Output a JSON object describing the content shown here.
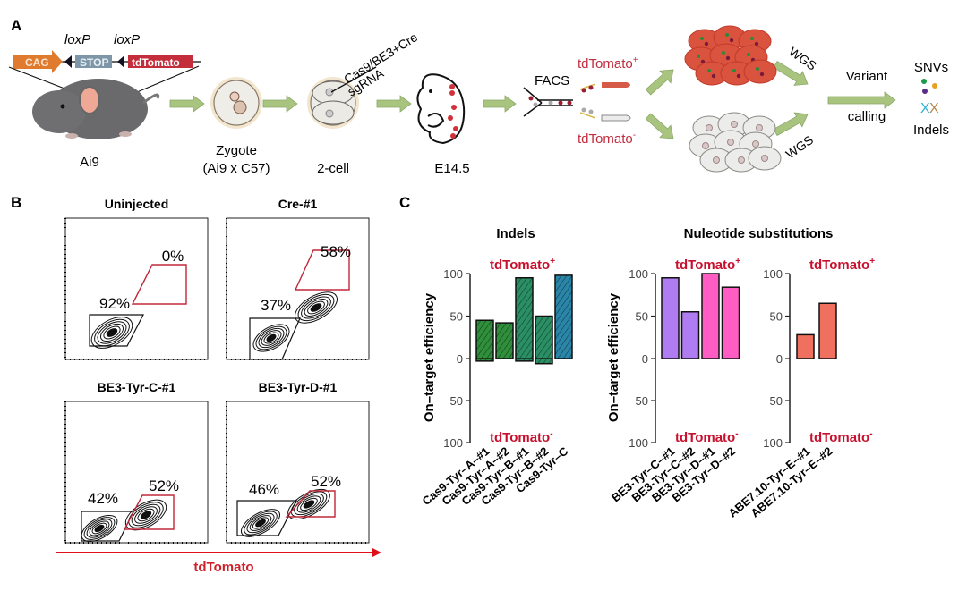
{
  "panel_a": {
    "letter": "A",
    "loxp1": "loxP",
    "loxp2": "loxP",
    "construct": {
      "cag": "CAG",
      "stop": "STOP",
      "tdtomato": "tdTomato"
    },
    "mouse_label": "Ai9",
    "zygote_label": "Zygote",
    "zygote_sub": "(Ai9 x C57)",
    "twocell_label": "2-cell",
    "injection_1": "Cas9/BE3+Cre",
    "injection_2": "sgRNA",
    "embryo_label": "E14.5",
    "facs": "FACS",
    "tdtomato_pos": "tdTomato",
    "tdtomato_neg": "tdTomato",
    "pos_sup": "+",
    "neg_sup": "-",
    "wgs_top": "WGS",
    "wgs_bottom": "WGS",
    "variant": "Variant",
    "calling": "calling",
    "snvs": "SNVs",
    "indels": "Indels",
    "colors": {
      "arrow": "#a9c47f",
      "red": "#d0323a",
      "cag": "#e07a2e",
      "stop": "#7d97a8"
    }
  },
  "panel_b": {
    "letter": "B",
    "plots": [
      {
        "title": "Uninjected",
        "neg_pct": "92%",
        "pos_pct": "0%"
      },
      {
        "title": "Cre-#1",
        "neg_pct": "37%",
        "pos_pct": "58%"
      },
      {
        "title": "BE3-Tyr-C-#1",
        "neg_pct": "42%",
        "pos_pct": "52%"
      },
      {
        "title": "BE3-Tyr-D-#1",
        "neg_pct": "46%",
        "pos_pct": "52%"
      }
    ],
    "x_axis_label": "tdTomato"
  },
  "panel_c": {
    "letter": "C",
    "indels_title": "Indels",
    "subs_title": "Nuleotide substitutions",
    "ylabel": "On–target efficiency",
    "pos_label": "tdTomato",
    "neg_label": "tdTomato",
    "pos_sup": "+",
    "neg_sup": "-"
  },
  "chart_data": [
    {
      "type": "bar",
      "title": "Indels",
      "ylabel": "On–target efficiency",
      "ylim": [
        -100,
        100
      ],
      "yticks": [
        "100",
        "50",
        "0",
        "50",
        "100"
      ],
      "categories": [
        "Cas9-Tyr–A–#1",
        "Cas9-Tyr–A–#2",
        "Cas9-Tyr–B–#1",
        "Cas9-Tyr–B–#2",
        "Cas9-Tyr–C"
      ],
      "series": [
        {
          "name": "tdTomato+",
          "values": [
            45,
            42,
            95,
            50,
            98
          ]
        },
        {
          "name": "tdTomato-",
          "values": [
            3,
            0,
            3,
            6,
            0
          ]
        }
      ],
      "colors": [
        "#2f8f3a",
        "#2f8f3a",
        "#2a8f64",
        "#2a8f64",
        "#2a86a8"
      ],
      "hatched": true
    },
    {
      "type": "bar",
      "title": "Nuleotide substitutions",
      "ylabel": "On–target efficiency",
      "ylim": [
        -100,
        100
      ],
      "yticks": [
        "100",
        "50",
        "0",
        "50",
        "100"
      ],
      "categories": [
        "BE3-Tyr–C–#1",
        "BE3-Tyr–C–#2",
        "BE3-Tyr–D–#1",
        "BE3-Tyr–D–#2"
      ],
      "series": [
        {
          "name": "tdTomato+",
          "values": [
            95,
            55,
            100,
            84
          ]
        },
        {
          "name": "tdTomato-",
          "values": [
            0,
            0,
            0,
            0
          ]
        }
      ],
      "colors": [
        "#b07cf2",
        "#b07cf2",
        "#ff5cc4",
        "#ff5cc4"
      ],
      "hatched": false
    },
    {
      "type": "bar",
      "title": "",
      "ylim": [
        -100,
        100
      ],
      "yticks": [
        "100",
        "50",
        "0",
        "50",
        "100"
      ],
      "categories": [
        "ABE7.10-Tyr–E–#1",
        "ABE7.10-Tyr–E–#2"
      ],
      "series": [
        {
          "name": "tdTomato+",
          "values": [
            28,
            65
          ]
        },
        {
          "name": "tdTomato-",
          "values": [
            0,
            0
          ]
        }
      ],
      "colors": [
        "#f07060",
        "#f07060"
      ],
      "hatched": false
    }
  ]
}
